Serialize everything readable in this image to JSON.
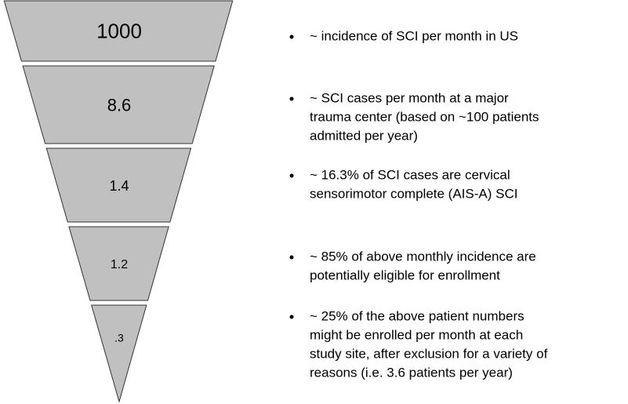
{
  "levels": [
    {
      "label": "1000",
      "note": [
        "~ incidence of SCI per month in US"
      ]
    },
    {
      "label": "8.6",
      "note": [
        "~ SCI cases per month at a major",
        "trauma center (based on ~100 patients",
        "admitted per year)"
      ]
    },
    {
      "label": "1.4",
      "note": [
        "~ 16.3% of SCI cases are cervical",
        "sensorimotor complete (AIS-A) SCI"
      ]
    },
    {
      "label": "1.2",
      "note": [
        "~ 85% of above monthly incidence are",
        "potentially eligible for enrollment"
      ]
    },
    {
      "label": ".3",
      "note": [
        "~ 25% of the above patient numbers",
        "might be enrolled per month at each",
        "study site, after exclusion for a variety of",
        "reasons (i.e. 3.6 patients per year)"
      ]
    }
  ]
}
